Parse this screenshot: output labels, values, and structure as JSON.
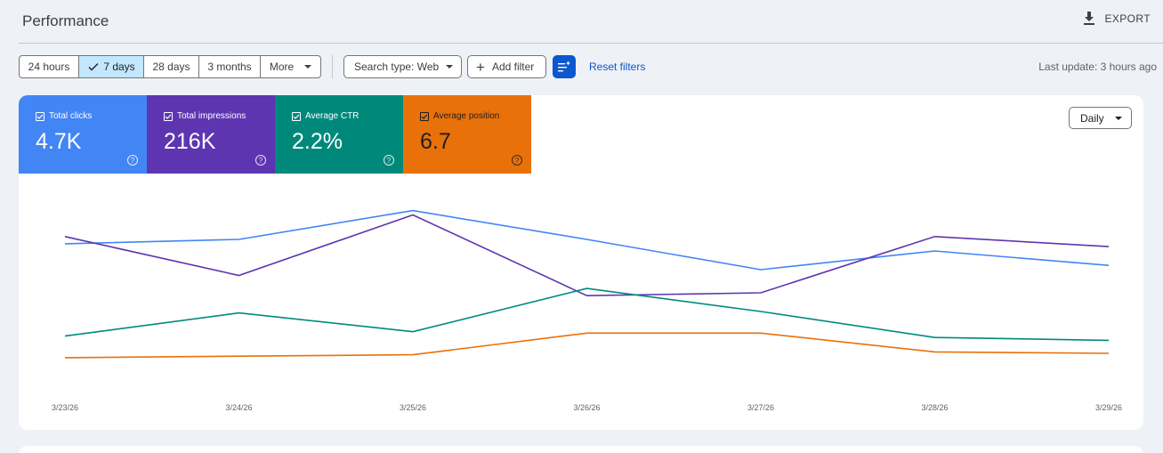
{
  "header": {
    "title": "Performance",
    "export_label": "EXPORT"
  },
  "toolbar": {
    "ranges": [
      "24 hours",
      "7 days",
      "28 days",
      "3 months",
      "More"
    ],
    "selected_range": "7 days",
    "search_type": "Search type: Web",
    "add_filter": "Add filter",
    "reset_filters": "Reset filters",
    "last_update": "Last update: 3 hours ago"
  },
  "metrics": [
    {
      "label": "Total clicks",
      "value": "4.7K",
      "color": "#4285f4"
    },
    {
      "label": "Total impressions",
      "value": "216K",
      "color": "#5e35b1"
    },
    {
      "label": "Average CTR",
      "value": "2.2%",
      "color": "#00897b"
    },
    {
      "label": "Average position",
      "value": "6.7",
      "color": "#e8710a"
    }
  ],
  "granularity": "Daily",
  "chart_data": {
    "type": "line",
    "x": [
      "3/23/26",
      "3/24/26",
      "3/25/26",
      "3/26/26",
      "3/27/26",
      "3/28/26",
      "3/29/26"
    ],
    "yscale": "independent per series, no axis labels shown",
    "series": [
      {
        "name": "Total clicks",
        "color": "#4285f4",
        "values": [
          0.76,
          0.79,
          0.99,
          0.79,
          0.58,
          0.71,
          0.61
        ]
      },
      {
        "name": "Total impressions",
        "color": "#5e35b1",
        "values": [
          0.81,
          0.54,
          0.96,
          0.4,
          0.42,
          0.81,
          0.74
        ]
      },
      {
        "name": "Average CTR",
        "color": "#00897b",
        "values": [
          0.12,
          0.28,
          0.15,
          0.45,
          0.29,
          0.11,
          0.09
        ]
      },
      {
        "name": "Average position",
        "color": "#e8710a",
        "values": [
          -0.03,
          -0.02,
          -0.01,
          0.14,
          0.14,
          0.01,
          0.0
        ]
      }
    ],
    "grid": false,
    "legend": "none"
  }
}
